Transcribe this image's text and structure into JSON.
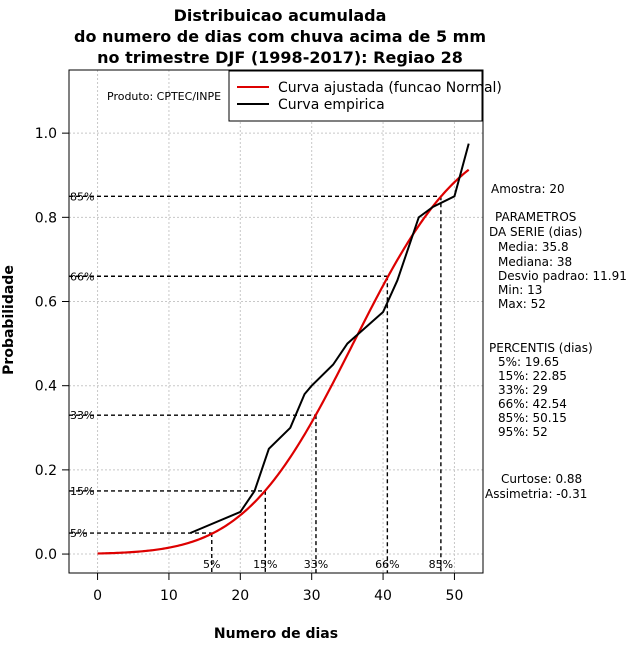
{
  "chart_data": {
    "type": "line",
    "title": [
      "Distribuicao acumulada",
      "do numero de dias com chuva acima de 5 mm",
      "no trimestre DJF (1998-2017): Regiao 28"
    ],
    "xlabel": "Numero de dias",
    "ylabel": "Probabilidade",
    "xlim": [
      -4,
      54
    ],
    "ylim": [
      -0.045,
      1.15
    ],
    "xticks": [
      0,
      10,
      20,
      30,
      40,
      50
    ],
    "yticks": [
      0.0,
      0.2,
      0.4,
      0.6,
      0.8,
      1.0
    ],
    "xtick_labels": [
      "0",
      "10",
      "20",
      "30",
      "40",
      "50"
    ],
    "ytick_labels": [
      "0.0",
      "0.2",
      "0.4",
      "0.6",
      "0.8",
      "1.0"
    ],
    "grid": true,
    "legend_position": "top-right",
    "producer_label": "Produto: CPTEC/INPE",
    "series": [
      {
        "name": "Curva ajustada (funcao Normal)",
        "color": "#dd0000",
        "distribution": {
          "mean": 35.8,
          "sd": 11.91,
          "x_from": 0,
          "x_to": 52
        }
      },
      {
        "name": "Curva empirica",
        "color": "#000000",
        "x": [
          13,
          20,
          22,
          24,
          27,
          29,
          30,
          33,
          35,
          40,
          42,
          45,
          47,
          50,
          52
        ],
        "y": [
          0.05,
          0.1,
          0.15,
          0.25,
          0.3,
          0.38,
          0.4,
          0.45,
          0.5,
          0.575,
          0.65,
          0.8,
          0.825,
          0.85,
          0.975
        ]
      }
    ],
    "percentile_lines": [
      {
        "label": "5%",
        "prob": 0.05,
        "x": 16.0
      },
      {
        "label": "15%",
        "prob": 0.15,
        "x": 23.5
      },
      {
        "label": "33%",
        "prob": 0.33,
        "x": 30.6
      },
      {
        "label": "66%",
        "prob": 0.66,
        "x": 40.6
      },
      {
        "label": "85%",
        "prob": 0.85,
        "x": 48.1
      }
    ],
    "side_panel": {
      "amostra": "Amostra: 20",
      "parametros_title": [
        "PARAMETROS",
        "DA SERIE (dias)"
      ],
      "parametros": [
        "Media: 35.8",
        "Mediana: 38",
        "Desvio padrao: 11.91",
        "Min: 13",
        "Max: 52"
      ],
      "percentis_title": "PERCENTIS (dias)",
      "percentis": [
        "5%: 19.65",
        "15%: 22.85",
        "33%: 29",
        "66%: 42.54",
        "85%: 50.15",
        "95%: 52"
      ],
      "curtose": "Curtose: 0.88",
      "assimetria": "Assimetria: -0.31"
    }
  }
}
